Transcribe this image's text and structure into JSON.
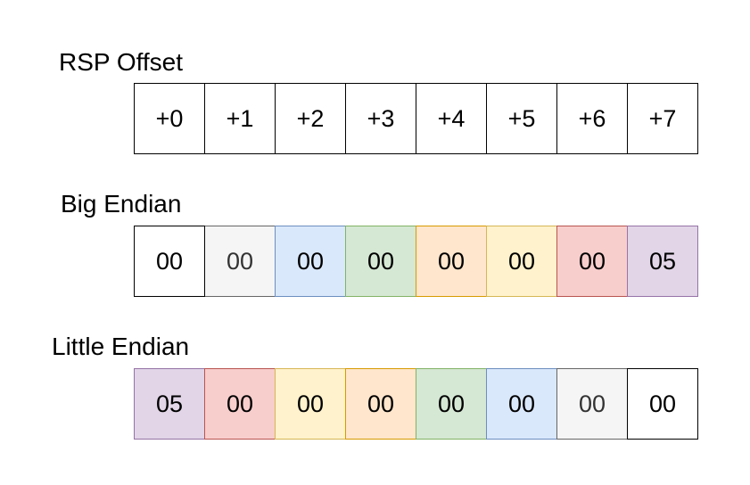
{
  "rows": {
    "offset": {
      "label": "RSP Offset",
      "cells": [
        {
          "text": "+0",
          "fill": "#ffffff",
          "stroke": "#000000",
          "color": "#000000"
        },
        {
          "text": "+1",
          "fill": "#ffffff",
          "stroke": "#000000",
          "color": "#000000"
        },
        {
          "text": "+2",
          "fill": "#ffffff",
          "stroke": "#000000",
          "color": "#000000"
        },
        {
          "text": "+3",
          "fill": "#ffffff",
          "stroke": "#000000",
          "color": "#000000"
        },
        {
          "text": "+4",
          "fill": "#ffffff",
          "stroke": "#000000",
          "color": "#000000"
        },
        {
          "text": "+5",
          "fill": "#ffffff",
          "stroke": "#000000",
          "color": "#000000"
        },
        {
          "text": "+6",
          "fill": "#ffffff",
          "stroke": "#000000",
          "color": "#000000"
        },
        {
          "text": "+7",
          "fill": "#ffffff",
          "stroke": "#000000",
          "color": "#000000"
        }
      ]
    },
    "big_endian": {
      "label": "Big Endian",
      "cells": [
        {
          "text": "00",
          "fill": "#ffffff",
          "stroke": "#000000",
          "color": "#000000"
        },
        {
          "text": "00",
          "fill": "#f5f5f5",
          "stroke": "#666666",
          "color": "#333333"
        },
        {
          "text": "00",
          "fill": "#dae8fc",
          "stroke": "#6c8ebf",
          "color": "#000000"
        },
        {
          "text": "00",
          "fill": "#d5e8d4",
          "stroke": "#82b366",
          "color": "#000000"
        },
        {
          "text": "00",
          "fill": "#ffe6cc",
          "stroke": "#d79b00",
          "color": "#000000"
        },
        {
          "text": "00",
          "fill": "#fff2cc",
          "stroke": "#d6b656",
          "color": "#000000"
        },
        {
          "text": "00",
          "fill": "#f8cecc",
          "stroke": "#b85450",
          "color": "#000000"
        },
        {
          "text": "05",
          "fill": "#e1d5e7",
          "stroke": "#9673a6",
          "color": "#000000"
        }
      ]
    },
    "little_endian": {
      "label": "Little Endian",
      "cells": [
        {
          "text": "05",
          "fill": "#e1d5e7",
          "stroke": "#9673a6",
          "color": "#000000"
        },
        {
          "text": "00",
          "fill": "#f8cecc",
          "stroke": "#b85450",
          "color": "#000000"
        },
        {
          "text": "00",
          "fill": "#fff2cc",
          "stroke": "#d6b656",
          "color": "#000000"
        },
        {
          "text": "00",
          "fill": "#ffe6cc",
          "stroke": "#d79b00",
          "color": "#000000"
        },
        {
          "text": "00",
          "fill": "#d5e8d4",
          "stroke": "#82b366",
          "color": "#000000"
        },
        {
          "text": "00",
          "fill": "#dae8fc",
          "stroke": "#6c8ebf",
          "color": "#000000"
        },
        {
          "text": "00",
          "fill": "#f5f5f5",
          "stroke": "#666666",
          "color": "#333333"
        },
        {
          "text": "00",
          "fill": "#ffffff",
          "stroke": "#000000",
          "color": "#000000"
        }
      ]
    }
  }
}
